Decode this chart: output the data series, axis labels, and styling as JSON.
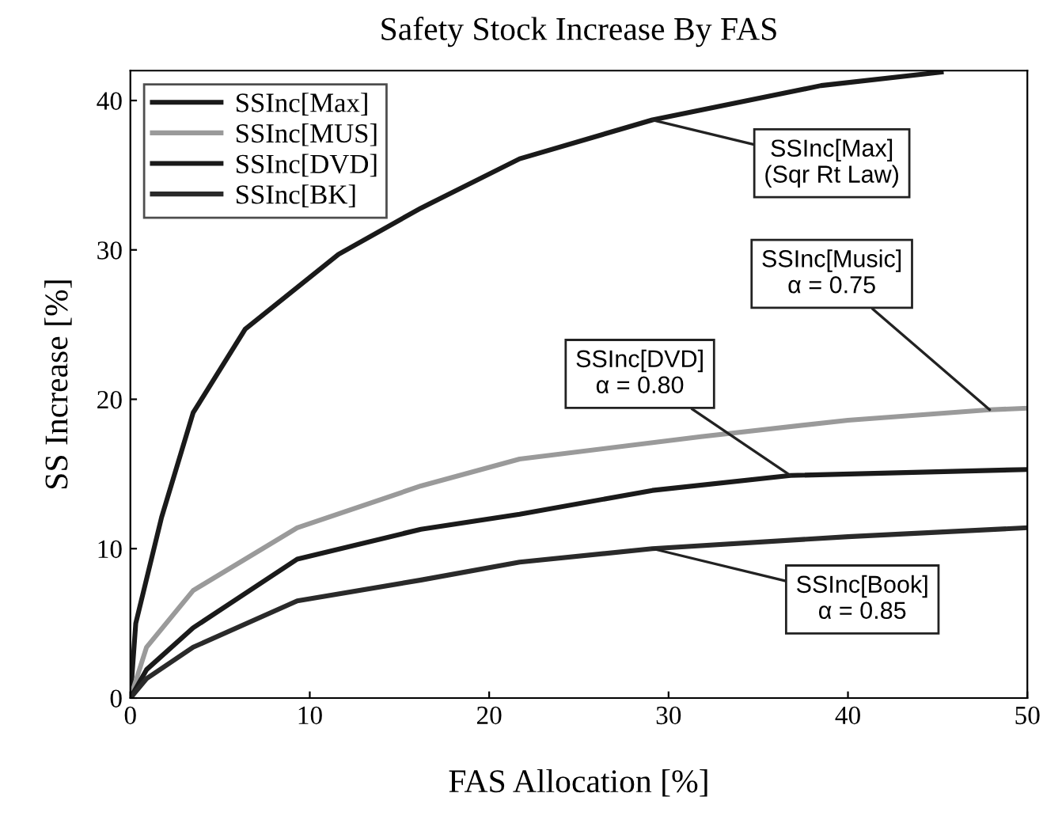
{
  "chart_data": {
    "type": "line",
    "title": "Safety Stock Increase By FAS",
    "xlabel": "FAS Allocation [%]",
    "ylabel": "SS Increase [%]",
    "xlim": [
      0,
      50
    ],
    "ylim": [
      0,
      42
    ],
    "xticks": [
      0,
      10,
      20,
      30,
      40,
      50
    ],
    "yticks": [
      0,
      10,
      20,
      30,
      40
    ],
    "grid": false,
    "legend": "top left",
    "marker": "none",
    "line_style": "solid",
    "series": [
      {
        "name": "SSInc[Max]",
        "color": "#1a1a1a",
        "x": [
          0,
          0.3,
          1.74,
          3.5,
          6.4,
          11.6,
          16.2,
          21.7,
          29.1,
          38.5,
          45.2
        ],
        "values": [
          0,
          5,
          12.1,
          19.1,
          24.7,
          29.7,
          32.8,
          36.1,
          38.7,
          41.0,
          41.9
        ]
      },
      {
        "name": "SSInc[MUS]",
        "color": "#9a9a9a",
        "x": [
          0,
          0.9,
          3.5,
          9.3,
          16.2,
          21.7,
          31.8,
          40,
          47.9,
          50
        ],
        "values": [
          0,
          3.4,
          7.2,
          11.4,
          14.2,
          16.0,
          17.5,
          18.6,
          19.3,
          19.4
        ]
      },
      {
        "name": "SSInc[DVD]",
        "color": "#1a1a1a",
        "x": [
          0,
          0.9,
          3.5,
          9.3,
          16.2,
          21.7,
          29.1,
          36.8,
          50
        ],
        "values": [
          0,
          1.9,
          4.7,
          9.3,
          11.3,
          12.3,
          13.9,
          14.9,
          15.3
        ]
      },
      {
        "name": "SSInc[BK]",
        "color": "#2a2a2a",
        "x": [
          0,
          0.9,
          3.5,
          9.3,
          16.2,
          21.7,
          29.1,
          40,
          50
        ],
        "values": [
          0,
          1.3,
          3.4,
          6.5,
          7.9,
          9.1,
          10.0,
          10.8,
          11.4
        ]
      }
    ],
    "annotations": [
      {
        "text": "SSInc[Max]\n(Sqr Rt Law)",
        "x": 29.1,
        "y": 38.7
      },
      {
        "text": "SSInc[Music]\nα = 0.75",
        "x": 47.9,
        "y": 19.3
      },
      {
        "text": "SSInc[DVD]\nα = 0.80",
        "x": 36.8,
        "y": 14.9
      },
      {
        "text": "SSInc[Book]\nα = 0.85",
        "x": 29.1,
        "y": 10.0
      }
    ]
  }
}
